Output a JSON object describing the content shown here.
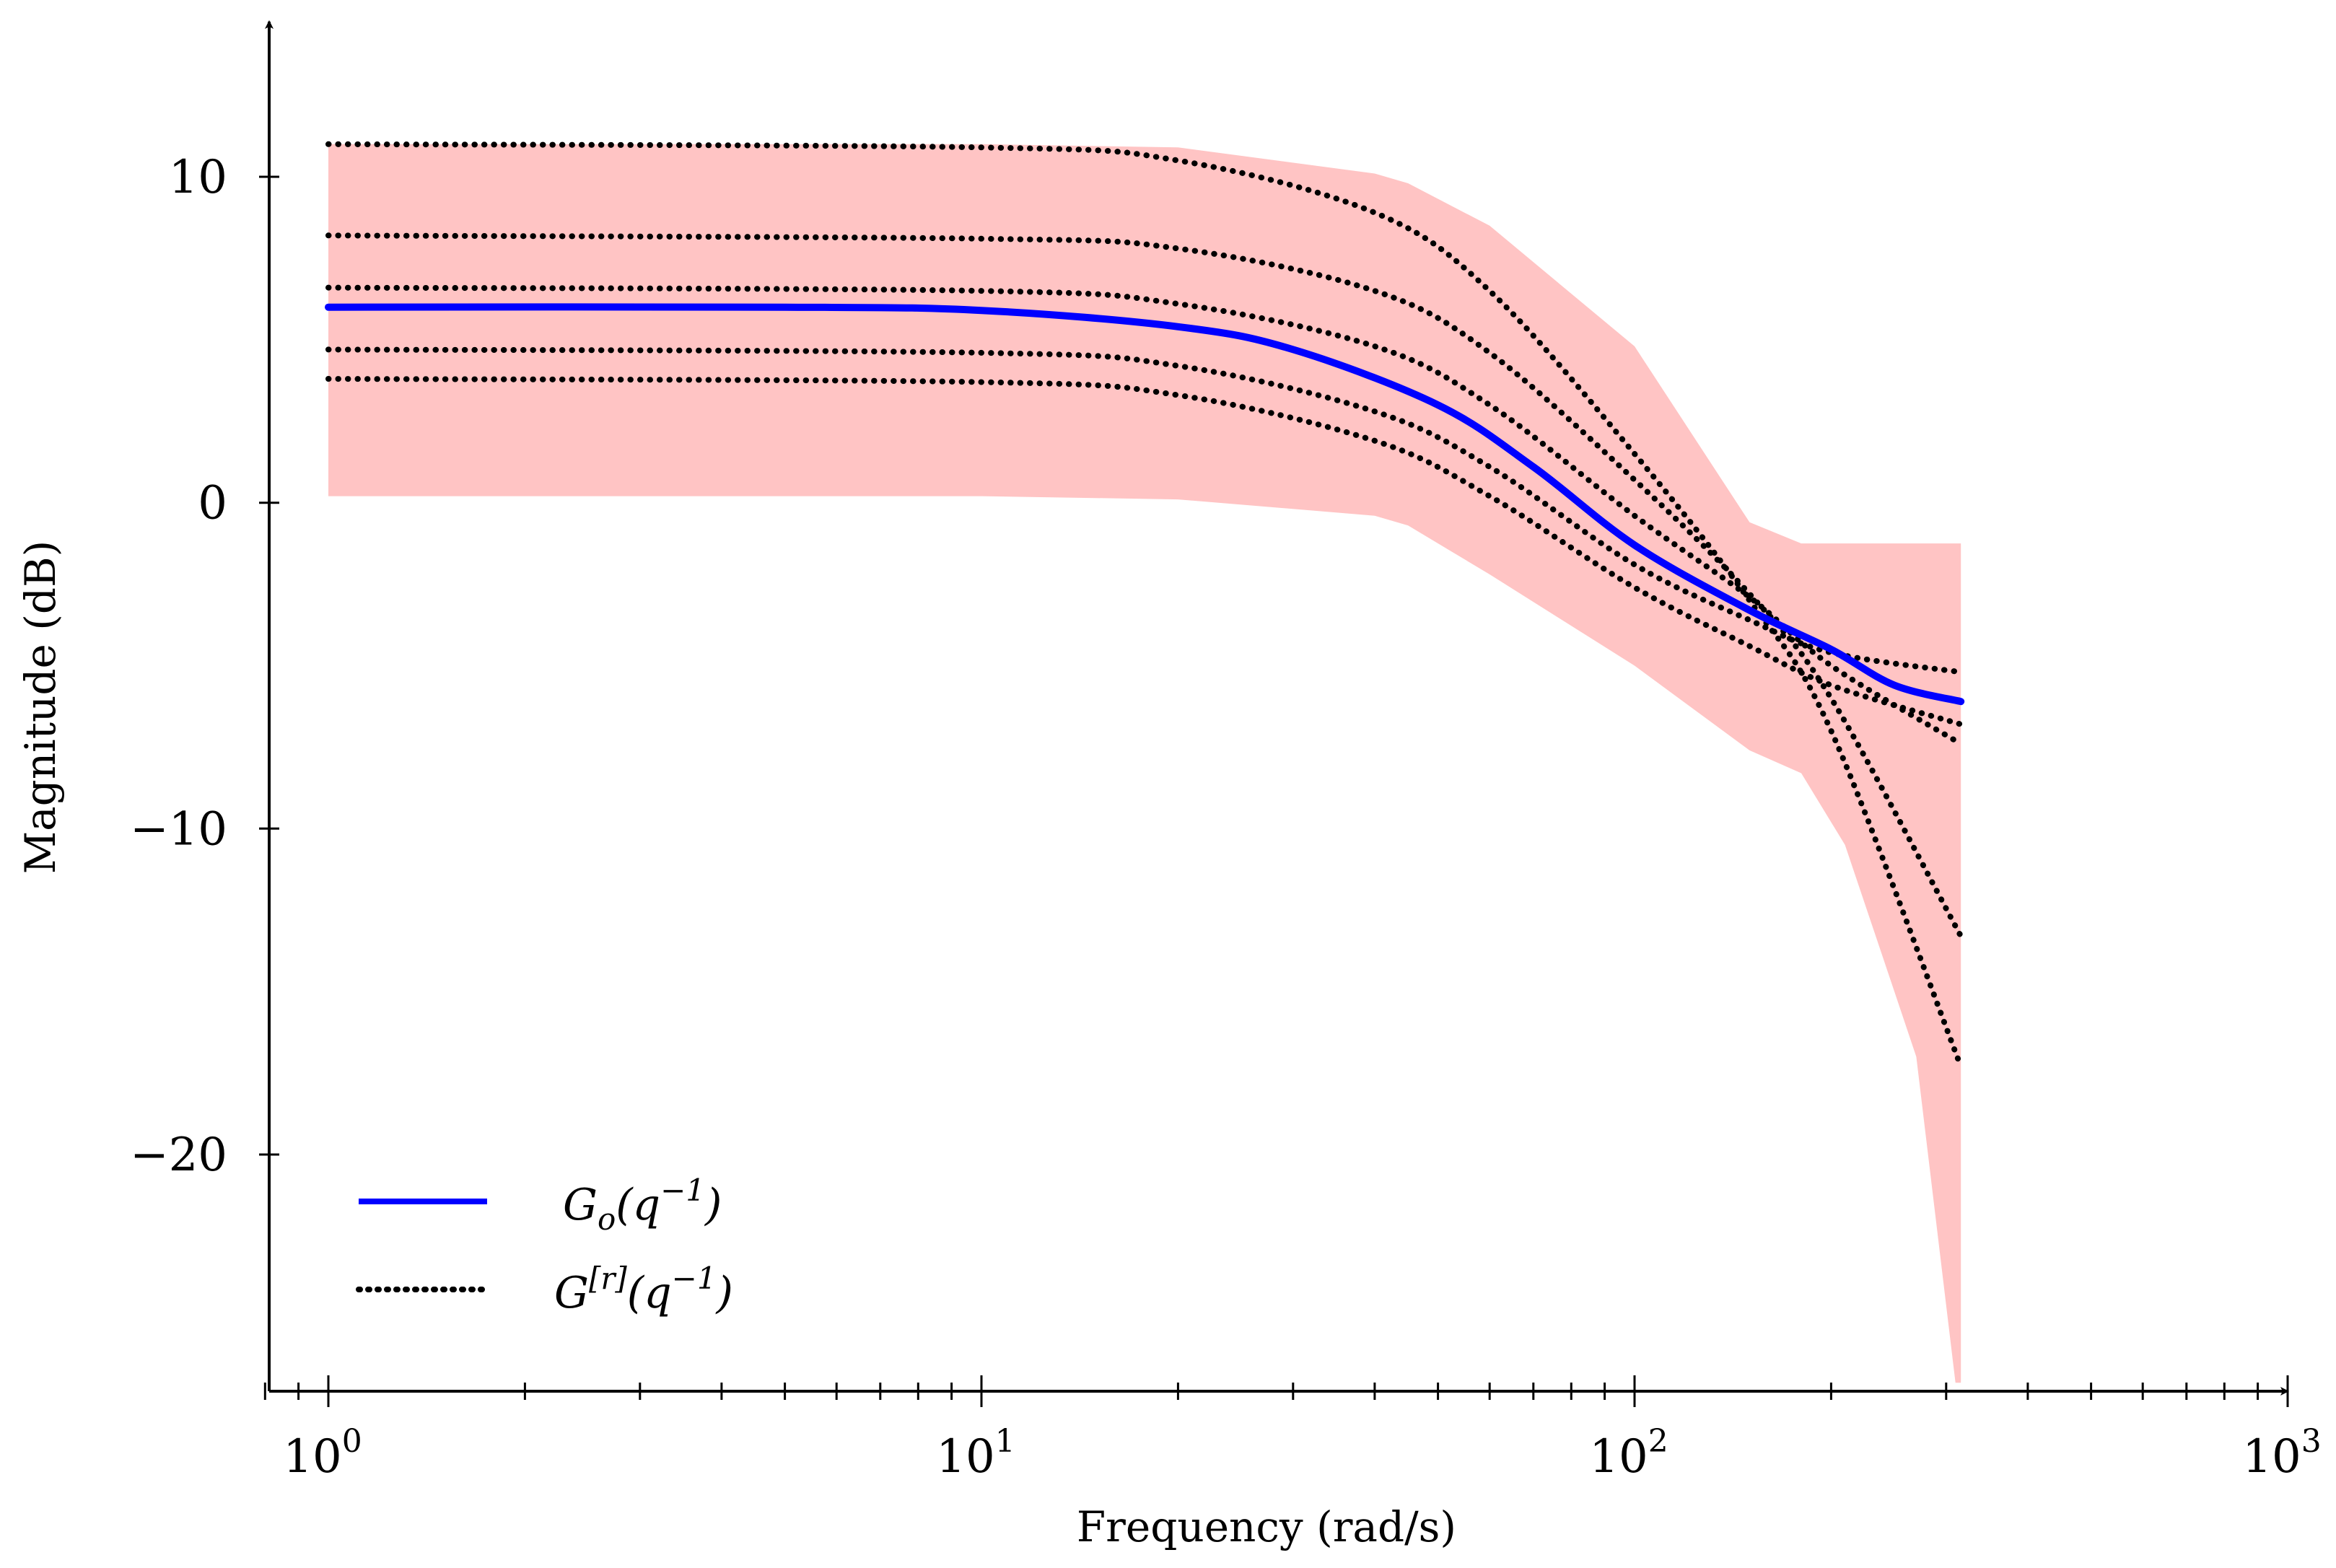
{
  "chart_data": {
    "type": "line",
    "xlabel": "Frequency (rad/s)",
    "ylabel": "Magnitude (dB)",
    "xscale": "log",
    "xlim": [
      0.8,
      1000
    ],
    "ylim": [
      -27,
      15
    ],
    "xticks": [
      {
        "value": 1,
        "base": "10",
        "exp": "0"
      },
      {
        "value": 10,
        "base": "10",
        "exp": "1"
      },
      {
        "value": 100,
        "base": "10",
        "exp": "2"
      },
      {
        "value": 1000,
        "base": "10",
        "exp": "3"
      }
    ],
    "yticks": [
      {
        "value": 10,
        "label": "10"
      },
      {
        "value": 0,
        "label": "0"
      },
      {
        "value": -10,
        "label": "−10"
      },
      {
        "value": -20,
        "label": "−20"
      }
    ],
    "band": {
      "color": "#ffc4c4",
      "x": [
        1,
        10,
        20,
        40,
        45,
        60,
        100,
        150,
        180,
        210,
        250,
        270,
        310,
        316
      ],
      "upper": [
        11,
        11,
        10.9,
        10.1,
        9.8,
        8.5,
        4.8,
        -0.6,
        -1.25,
        -1.25,
        -1.25,
        -1.25,
        -1.25,
        -1.25
      ],
      "lower": [
        0.2,
        0.2,
        0.1,
        -0.4,
        -0.7,
        -2.2,
        -5,
        -7.6,
        -8.3,
        -10.5,
        -15,
        -17,
        -27,
        -27
      ]
    },
    "series": [
      {
        "name": "G_o(q^-1)",
        "legend": {
          "base": "G",
          "sub": "o",
          "arg": "(q",
          "sup": "−1",
          "close": ")"
        },
        "color": "#0000ff",
        "style": "solid",
        "x": [
          1,
          5,
          10,
          20,
          30,
          50,
          70,
          100,
          150,
          200,
          250,
          316
        ],
        "values": [
          6.0,
          6.0,
          5.9,
          5.4,
          4.7,
          3.0,
          1.1,
          -1.3,
          -3.3,
          -4.5,
          -5.6,
          -6.1
        ]
      },
      {
        "name": "G^[r](q^-1) #1",
        "color": "#000000",
        "style": "dotted",
        "x": [
          1,
          10,
          20,
          40,
          60,
          100,
          150,
          200,
          316
        ],
        "values": [
          11.0,
          10.9,
          10.5,
          8.9,
          6.5,
          1.5,
          -3.0,
          -7.0,
          -17.3
        ]
      },
      {
        "name": "G^[r](q^-1) #2",
        "color": "#000000",
        "style": "dotted",
        "x": [
          1,
          10,
          20,
          40,
          60,
          100,
          150,
          200,
          316
        ],
        "values": [
          8.2,
          8.1,
          7.8,
          6.5,
          4.6,
          0.7,
          -2.8,
          -6.0,
          -13.3
        ]
      },
      {
        "name": "G^[r](q^-1) #3",
        "color": "#000000",
        "style": "dotted",
        "x": [
          1,
          10,
          20,
          40,
          60,
          100,
          150,
          200,
          316
        ],
        "values": [
          6.6,
          6.5,
          6.1,
          4.8,
          3.0,
          -0.4,
          -2.9,
          -5.0,
          -7.4
        ]
      },
      {
        "name": "G^[r](q^-1) #4",
        "color": "#000000",
        "style": "dotted",
        "x": [
          1,
          10,
          20,
          40,
          60,
          100,
          150,
          200,
          316
        ],
        "values": [
          4.7,
          4.6,
          4.2,
          2.8,
          1.1,
          -1.9,
          -3.6,
          -4.6,
          -5.2
        ]
      },
      {
        "name": "G^[r](q^-1) #5",
        "color": "#000000",
        "style": "dotted",
        "x": [
          1,
          10,
          20,
          40,
          60,
          100,
          150,
          200,
          316
        ],
        "values": [
          3.8,
          3.7,
          3.3,
          1.9,
          0.2,
          -2.6,
          -4.4,
          -5.6,
          -6.8
        ]
      }
    ],
    "legend_entries": [
      {
        "base": "G",
        "sub": "o",
        "arg": "(q",
        "sup": "−1",
        "close": ")"
      },
      {
        "base": "G",
        "bracket": "[r]",
        "arg": "(q",
        "sup": "−1",
        "close": ")"
      }
    ],
    "legend_position": "bottom-left"
  }
}
